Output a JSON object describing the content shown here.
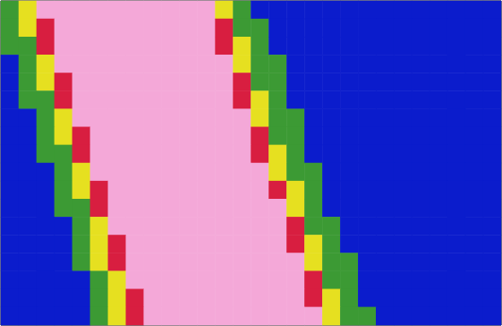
{
  "chart_data": {
    "type": "heatmap",
    "tick_labels": false,
    "color_range": [
      0,
      4
    ],
    "cells": [
      [
        1,
        2,
        4,
        4,
        4,
        4,
        4,
        4,
        4,
        4,
        4,
        4,
        2,
        1,
        0,
        0,
        0,
        0,
        0,
        0,
        0,
        0,
        0,
        0,
        0,
        0,
        0,
        0
      ],
      [
        1,
        2,
        3,
        4,
        4,
        4,
        4,
        4,
        4,
        4,
        4,
        4,
        3,
        1,
        1,
        0,
        0,
        0,
        0,
        0,
        0,
        0,
        0,
        0,
        0,
        0,
        0,
        0
      ],
      [
        1,
        1,
        3,
        4,
        4,
        4,
        4,
        4,
        4,
        4,
        4,
        4,
        3,
        2,
        1,
        0,
        0,
        0,
        0,
        0,
        0,
        0,
        0,
        0,
        0,
        0,
        0,
        0
      ],
      [
        0,
        1,
        2,
        4,
        4,
        4,
        4,
        4,
        4,
        4,
        4,
        4,
        4,
        2,
        1,
        1,
        0,
        0,
        0,
        0,
        0,
        0,
        0,
        0,
        0,
        0,
        0,
        0
      ],
      [
        0,
        1,
        2,
        3,
        4,
        4,
        4,
        4,
        4,
        4,
        4,
        4,
        4,
        3,
        1,
        1,
        0,
        0,
        0,
        0,
        0,
        0,
        0,
        0,
        0,
        0,
        0,
        0
      ],
      [
        0,
        1,
        1,
        3,
        4,
        4,
        4,
        4,
        4,
        4,
        4,
        4,
        4,
        3,
        2,
        1,
        0,
        0,
        0,
        0,
        0,
        0,
        0,
        0,
        0,
        0,
        0,
        0
      ],
      [
        0,
        0,
        1,
        2,
        4,
        4,
        4,
        4,
        4,
        4,
        4,
        4,
        4,
        4,
        2,
        1,
        1,
        0,
        0,
        0,
        0,
        0,
        0,
        0,
        0,
        0,
        0,
        0
      ],
      [
        0,
        0,
        1,
        2,
        3,
        4,
        4,
        4,
        4,
        4,
        4,
        4,
        4,
        4,
        3,
        1,
        1,
        0,
        0,
        0,
        0,
        0,
        0,
        0,
        0,
        0,
        0,
        0
      ],
      [
        0,
        0,
        1,
        1,
        3,
        4,
        4,
        4,
        4,
        4,
        4,
        4,
        4,
        4,
        3,
        2,
        1,
        0,
        0,
        0,
        0,
        0,
        0,
        0,
        0,
        0,
        0,
        0
      ],
      [
        0,
        0,
        0,
        1,
        2,
        4,
        4,
        4,
        4,
        4,
        4,
        4,
        4,
        4,
        4,
        2,
        1,
        1,
        0,
        0,
        0,
        0,
        0,
        0,
        0,
        0,
        0,
        0
      ],
      [
        0,
        0,
        0,
        1,
        2,
        3,
        4,
        4,
        4,
        4,
        4,
        4,
        4,
        4,
        4,
        3,
        2,
        1,
        0,
        0,
        0,
        0,
        0,
        0,
        0,
        0,
        0,
        0
      ],
      [
        0,
        0,
        0,
        1,
        1,
        3,
        4,
        4,
        4,
        4,
        4,
        4,
        4,
        4,
        4,
        4,
        2,
        1,
        0,
        0,
        0,
        0,
        0,
        0,
        0,
        0,
        0,
        0
      ],
      [
        0,
        0,
        0,
        0,
        1,
        2,
        4,
        4,
        4,
        4,
        4,
        4,
        4,
        4,
        4,
        4,
        3,
        1,
        1,
        0,
        0,
        0,
        0,
        0,
        0,
        0,
        0,
        0
      ],
      [
        0,
        0,
        0,
        0,
        1,
        2,
        3,
        4,
        4,
        4,
        4,
        4,
        4,
        4,
        4,
        4,
        3,
        2,
        1,
        0,
        0,
        0,
        0,
        0,
        0,
        0,
        0,
        0
      ],
      [
        0,
        0,
        0,
        0,
        1,
        2,
        3,
        4,
        4,
        4,
        4,
        4,
        4,
        4,
        4,
        4,
        4,
        2,
        1,
        1,
        0,
        0,
        0,
        0,
        0,
        0,
        0,
        0
      ],
      [
        0,
        0,
        0,
        0,
        0,
        1,
        2,
        4,
        4,
        4,
        4,
        4,
        4,
        4,
        4,
        4,
        4,
        3,
        1,
        1,
        0,
        0,
        0,
        0,
        0,
        0,
        0,
        0
      ],
      [
        0,
        0,
        0,
        0,
        0,
        1,
        2,
        3,
        4,
        4,
        4,
        4,
        4,
        4,
        4,
        4,
        4,
        3,
        2,
        1,
        0,
        0,
        0,
        0,
        0,
        0,
        0,
        0
      ],
      [
        0,
        0,
        0,
        0,
        0,
        1,
        2,
        3,
        4,
        4,
        4,
        4,
        4,
        4,
        4,
        4,
        4,
        4,
        2,
        1,
        1,
        0,
        0,
        0,
        0,
        0,
        0,
        0
      ]
    ]
  }
}
